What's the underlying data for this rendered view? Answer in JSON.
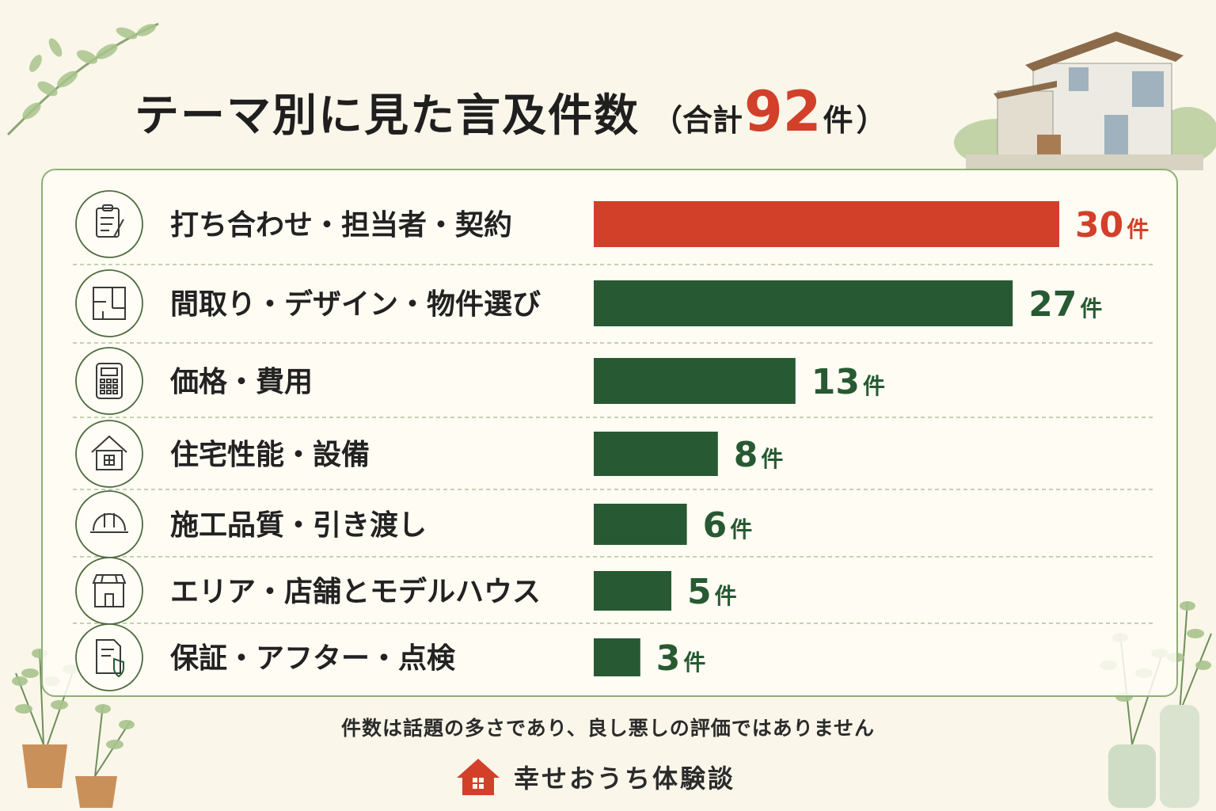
{
  "title": {
    "main": "テーマ別に見た言及件数",
    "paren_open": "（合計",
    "total": "92",
    "unit": "件",
    "paren_close": "）"
  },
  "footnote": "件数は話題の多さであり、良し悪しの評価ではありません",
  "brand": {
    "name": "幸せおうち体験談",
    "icon": "house-logo-icon"
  },
  "colors": {
    "highlight": "#d2402a",
    "bar": "#275a32",
    "accent_line": "#8fae78"
  },
  "chart_data": {
    "type": "bar",
    "orientation": "horizontal",
    "title": "テーマ別に見た言及件数（合計92件）",
    "value_suffix": "件",
    "xlim": [
      0,
      30
    ],
    "grid": false,
    "categories": [
      "打ち合わせ・担当者・契約",
      "間取り・デザイン・物件選び",
      "価格・費用",
      "住宅性能・設備",
      "施工品質・引き渡し",
      "エリア・店舗とモデルハウス",
      "保証・アフター・点検"
    ],
    "values": [
      30,
      27,
      13,
      8,
      6,
      5,
      3
    ],
    "highlight_index": 0,
    "icons": [
      "clipboard-icon",
      "floorplan-icon",
      "calculator-icon",
      "house-icon",
      "hardhat-icon",
      "storefront-icon",
      "warranty-document-icon"
    ]
  }
}
